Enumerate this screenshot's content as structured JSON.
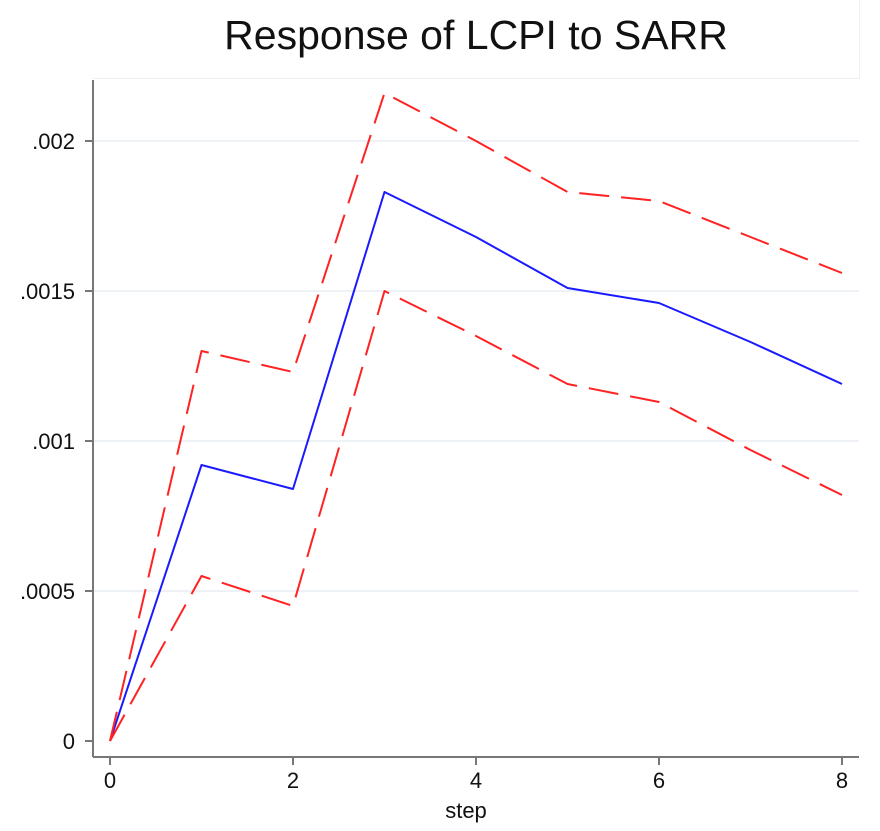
{
  "chart_data": {
    "type": "line",
    "title": "Response of LCPI to SARR",
    "xlabel": "step",
    "ylabel": "",
    "xlim": [
      0,
      8
    ],
    "ylim": [
      0,
      0.0022
    ],
    "x_ticks": [
      0,
      2,
      4,
      6,
      8
    ],
    "x_tick_labels": [
      "0",
      "2",
      "4",
      "6",
      "8"
    ],
    "y_ticks": [
      0,
      0.0005,
      0.001,
      0.0015,
      0.002
    ],
    "y_tick_labels": [
      "0",
      ".0005",
      ".001",
      ".0015",
      ".002"
    ],
    "grid": true,
    "legend": "none",
    "x": [
      0,
      1,
      2,
      3,
      4,
      5,
      6,
      7,
      8
    ],
    "series": [
      {
        "role": "impulse-response",
        "color": "#1a1aff",
        "style": "solid",
        "values": [
          0,
          0.00092,
          0.00084,
          0.00183,
          0.00168,
          0.00151,
          0.00146,
          0.00133,
          0.00119
        ]
      },
      {
        "role": "upper-band",
        "color": "#ff2222",
        "style": "dashed",
        "values": [
          0,
          0.0013,
          0.00123,
          0.00216,
          0.002,
          0.00183,
          0.0018,
          0.00168,
          0.00156
        ]
      },
      {
        "role": "lower-band",
        "color": "#ff2222",
        "style": "dashed",
        "values": [
          0,
          0.00055,
          0.00045,
          0.0015,
          0.00135,
          0.00119,
          0.00113,
          0.00097,
          0.00082
        ]
      }
    ]
  }
}
